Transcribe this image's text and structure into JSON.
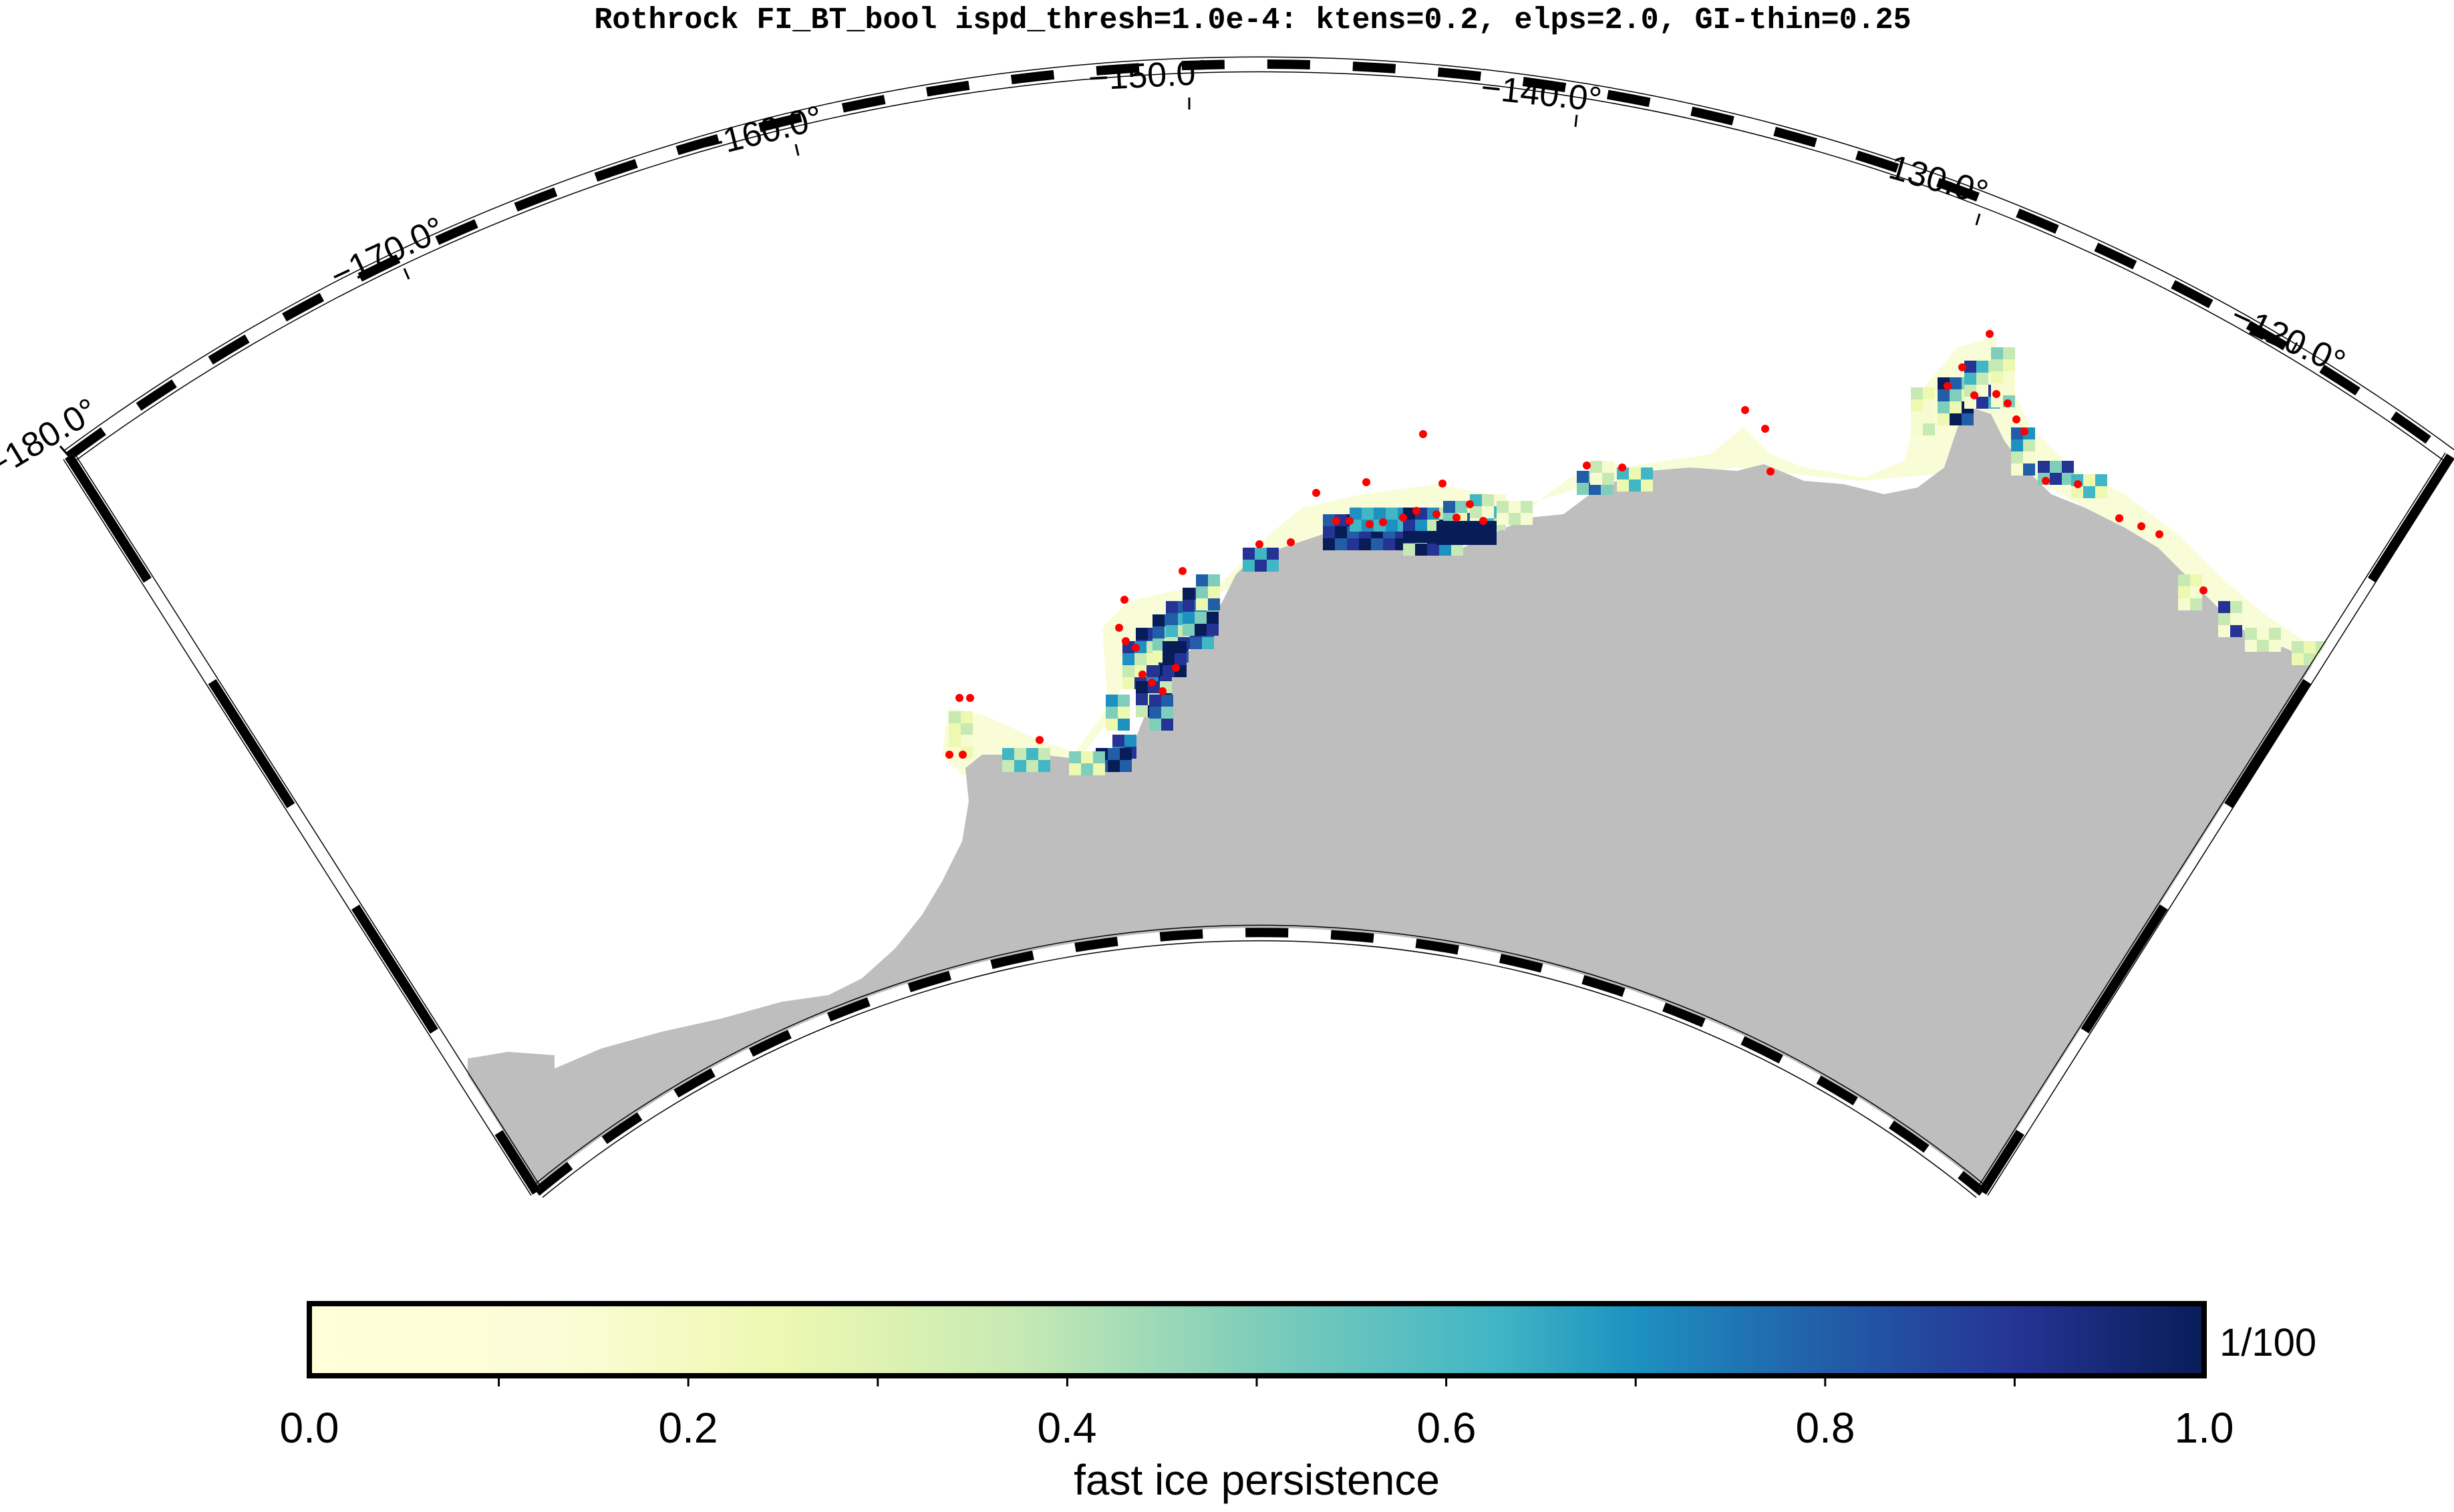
{
  "map": {
    "title": "Rothrock FI_BT_bool ispd_thresh=1.0e-4: ktens=0.2, elps=2.0, GI-thin=0.25",
    "projection": "polar stereographic sector",
    "longitude_range": [
      -180,
      -115
    ],
    "graticule_labels": [
      {
        "lon": -180,
        "text": "−180.0°"
      },
      {
        "lon": -170,
        "text": "−170.0°"
      },
      {
        "lon": -160,
        "text": "−160.0°"
      },
      {
        "lon": -150,
        "text": "−150.0°"
      },
      {
        "lon": -140,
        "text": "−140.0°"
      },
      {
        "lon": -130,
        "text": "−130.0°"
      },
      {
        "lon": -120,
        "text": "−120.0°"
      }
    ],
    "land_color": "#bebebe",
    "marker_color": "#ff0000",
    "legend_layers": [
      "land (grey)",
      "fast ice persistence (color scale)",
      "grounded iceberg points (red dots)"
    ]
  },
  "colorbar": {
    "label": "fast ice persistence",
    "unit_label": "1/100",
    "ticks": [
      "0.0",
      "0.2",
      "0.4",
      "0.6",
      "0.8",
      "1.0"
    ],
    "range": [
      0.0,
      1.0
    ],
    "colormap": [
      "#ffffd9",
      "#edf8b1",
      "#c7e9b4",
      "#7fcdbb",
      "#41b6c4",
      "#1d91c0",
      "#225ea8",
      "#253494",
      "#081d58"
    ]
  }
}
